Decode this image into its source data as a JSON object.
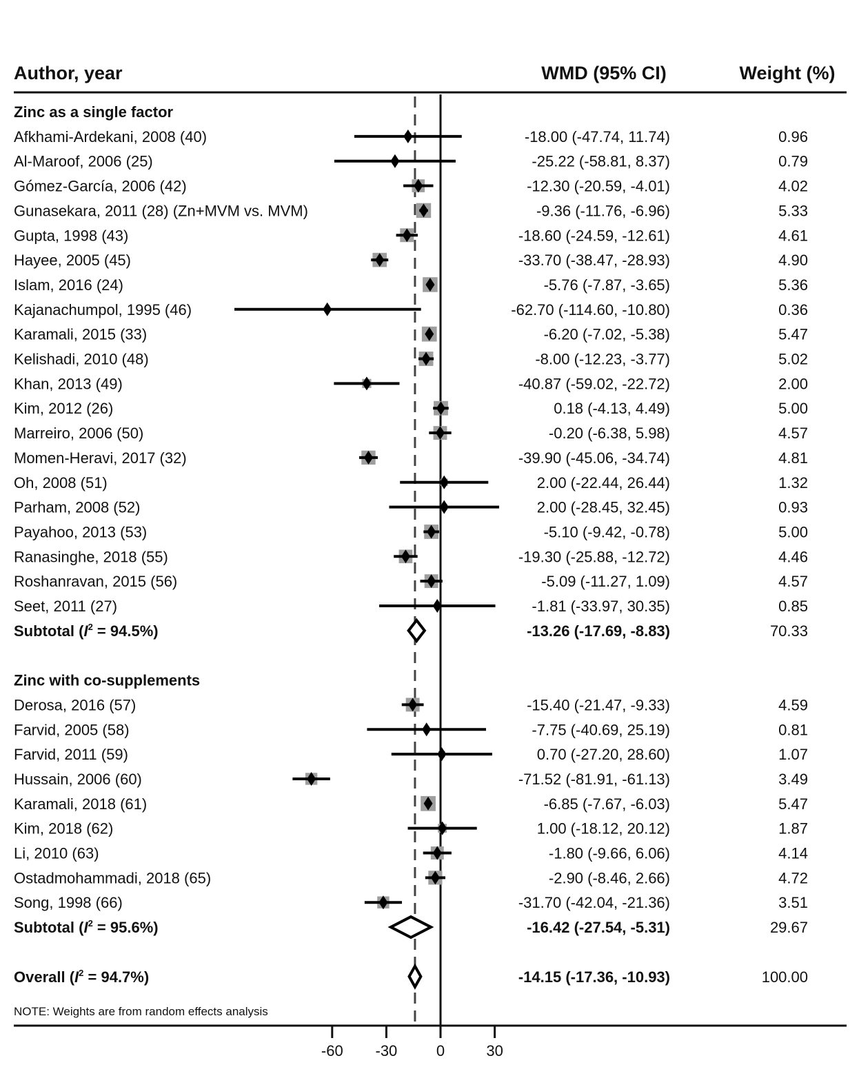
{
  "chart_data": {
    "type": "forest",
    "columns": {
      "study": "Author, year",
      "effect": "WMD (95% CI)",
      "weight": "Weight (%)"
    },
    "x_axis": {
      "ticks": [
        -60,
        -30,
        0,
        30
      ],
      "tick_labels": [
        "-60",
        "-30",
        "0",
        "30"
      ],
      "range": [
        -65,
        31
      ],
      "null_line": 0,
      "overall_reference_line": -14.15
    },
    "groups": [
      {
        "title": "Zinc as a single factor",
        "studies": [
          {
            "label": "Afkhami-Ardekani, 2008 (40)",
            "est": -18.0,
            "lo": -47.74,
            "hi": 11.74,
            "ci_text": "-18.00 (-47.74, 11.74)",
            "weight": 0.96,
            "weight_text": "0.96"
          },
          {
            "label": "Al-Maroof, 2006 (25)",
            "est": -25.22,
            "lo": -58.81,
            "hi": 8.37,
            "ci_text": "-25.22 (-58.81, 8.37)",
            "weight": 0.79,
            "weight_text": "0.79"
          },
          {
            "label": "Gómez-García, 2006 (42)",
            "est": -12.3,
            "lo": -20.59,
            "hi": -4.01,
            "ci_text": "-12.30 (-20.59, -4.01)",
            "weight": 4.02,
            "weight_text": "4.02"
          },
          {
            "label": "Gunasekara, 2011 (28) (Zn+MVM vs. MVM)",
            "est": -9.36,
            "lo": -11.76,
            "hi": -6.96,
            "ci_text": "-9.36 (-11.76, -6.96)",
            "weight": 5.33,
            "weight_text": "5.33"
          },
          {
            "label": "Gupta, 1998 (43)",
            "est": -18.6,
            "lo": -24.59,
            "hi": -12.61,
            "ci_text": "-18.60 (-24.59, -12.61)",
            "weight": 4.61,
            "weight_text": "4.61"
          },
          {
            "label": "Hayee, 2005 (45)",
            "est": -33.7,
            "lo": -38.47,
            "hi": -28.93,
            "ci_text": "-33.70 (-38.47, -28.93)",
            "weight": 4.9,
            "weight_text": "4.90"
          },
          {
            "label": "Islam, 2016 (24)",
            "est": -5.76,
            "lo": -7.87,
            "hi": -3.65,
            "ci_text": "-5.76 (-7.87, -3.65)",
            "weight": 5.36,
            "weight_text": "5.36"
          },
          {
            "label": "Kajanachumpol, 1995 (46)",
            "est": -62.7,
            "lo": -114.6,
            "hi": -10.8,
            "ci_text": "-62.70 (-114.60, -10.80)",
            "weight": 0.36,
            "weight_text": "0.36"
          },
          {
            "label": "Karamali, 2015 (33)",
            "est": -6.2,
            "lo": -7.02,
            "hi": -5.38,
            "ci_text": "-6.20 (-7.02, -5.38)",
            "weight": 5.47,
            "weight_text": "5.47"
          },
          {
            "label": "Kelishadi, 2010 (48)",
            "est": -8.0,
            "lo": -12.23,
            "hi": -3.77,
            "ci_text": "-8.00 (-12.23, -3.77)",
            "weight": 5.02,
            "weight_text": "5.02"
          },
          {
            "label": "Khan, 2013 (49)",
            "est": -40.87,
            "lo": -59.02,
            "hi": -22.72,
            "ci_text": "-40.87 (-59.02, -22.72)",
            "weight": 2.0,
            "weight_text": "2.00"
          },
          {
            "label": "Kim, 2012 (26)",
            "est": 0.18,
            "lo": -4.13,
            "hi": 4.49,
            "ci_text": "0.18 (-4.13, 4.49)",
            "weight": 5.0,
            "weight_text": "5.00"
          },
          {
            "label": "Marreiro, 2006 (50)",
            "est": -0.2,
            "lo": -6.38,
            "hi": 5.98,
            "ci_text": "-0.20 (-6.38, 5.98)",
            "weight": 4.57,
            "weight_text": "4.57"
          },
          {
            "label": "Momen-Heravi, 2017 (32)",
            "est": -39.9,
            "lo": -45.06,
            "hi": -34.74,
            "ci_text": "-39.90 (-45.06, -34.74)",
            "weight": 4.81,
            "weight_text": "4.81"
          },
          {
            "label": "Oh, 2008 (51)",
            "est": 2.0,
            "lo": -22.44,
            "hi": 26.44,
            "ci_text": "2.00 (-22.44, 26.44)",
            "weight": 1.32,
            "weight_text": "1.32"
          },
          {
            "label": "Parham, 2008 (52)",
            "est": 2.0,
            "lo": -28.45,
            "hi": 32.45,
            "ci_text": "2.00 (-28.45, 32.45)",
            "weight": 0.93,
            "weight_text": "0.93"
          },
          {
            "label": "Payahoo, 2013 (53)",
            "est": -5.1,
            "lo": -9.42,
            "hi": -0.78,
            "ci_text": "-5.10 (-9.42, -0.78)",
            "weight": 5.0,
            "weight_text": "5.00"
          },
          {
            "label": "Ranasinghe, 2018 (55)",
            "est": -19.3,
            "lo": -25.88,
            "hi": -12.72,
            "ci_text": "-19.30 (-25.88, -12.72)",
            "weight": 4.46,
            "weight_text": "4.46"
          },
          {
            "label": "Roshanravan, 2015 (56)",
            "est": -5.09,
            "lo": -11.27,
            "hi": 1.09,
            "ci_text": "-5.09 (-11.27, 1.09)",
            "weight": 4.57,
            "weight_text": "4.57"
          },
          {
            "label": "Seet, 2011 (27)",
            "est": -1.81,
            "lo": -33.97,
            "hi": 30.35,
            "ci_text": "-1.81 (-33.97, 30.35)",
            "weight": 0.85,
            "weight_text": "0.85"
          }
        ],
        "subtotal": {
          "label_prefix": "Subtotal (",
          "label_i": "I",
          "label_sup": "2",
          "label_suffix": " = 94.5%)",
          "i2": 94.5,
          "est": -13.26,
          "lo": -17.69,
          "hi": -8.83,
          "ci_text": "-13.26 (-17.69, -8.83)",
          "weight": 70.33,
          "weight_text": "70.33"
        }
      },
      {
        "title": "Zinc with co-supplements",
        "studies": [
          {
            "label": "Derosa, 2016 (57)",
            "est": -15.4,
            "lo": -21.47,
            "hi": -9.33,
            "ci_text": "-15.40 (-21.47, -9.33)",
            "weight": 4.59,
            "weight_text": "4.59"
          },
          {
            "label": "Farvid, 2005 (58)",
            "est": -7.75,
            "lo": -40.69,
            "hi": 25.19,
            "ci_text": "-7.75 (-40.69, 25.19)",
            "weight": 0.81,
            "weight_text": "0.81"
          },
          {
            "label": "Farvid, 2011 (59)",
            "est": 0.7,
            "lo": -27.2,
            "hi": 28.6,
            "ci_text": "0.70 (-27.20, 28.60)",
            "weight": 1.07,
            "weight_text": "1.07"
          },
          {
            "label": "Hussain, 2006 (60)",
            "est": -71.52,
            "lo": -81.91,
            "hi": -61.13,
            "ci_text": "-71.52 (-81.91, -61.13)",
            "weight": 3.49,
            "weight_text": "3.49"
          },
          {
            "label": "Karamali, 2018 (61)",
            "est": -6.85,
            "lo": -7.67,
            "hi": -6.03,
            "ci_text": "-6.85 (-7.67, -6.03)",
            "weight": 5.47,
            "weight_text": "5.47"
          },
          {
            "label": "Kim, 2018 (62)",
            "est": 1.0,
            "lo": -18.12,
            "hi": 20.12,
            "ci_text": "1.00 (-18.12, 20.12)",
            "weight": 1.87,
            "weight_text": "1.87"
          },
          {
            "label": "Li, 2010 (63)",
            "est": -1.8,
            "lo": -9.66,
            "hi": 6.06,
            "ci_text": "-1.80 (-9.66, 6.06)",
            "weight": 4.14,
            "weight_text": "4.14"
          },
          {
            "label": "Ostadmohammadi, 2018 (65)",
            "est": -2.9,
            "lo": -8.46,
            "hi": 2.66,
            "ci_text": "-2.90 (-8.46, 2.66)",
            "weight": 4.72,
            "weight_text": "4.72"
          },
          {
            "label": "Song, 1998 (66)",
            "est": -31.7,
            "lo": -42.04,
            "hi": -21.36,
            "ci_text": "-31.70 (-42.04, -21.36)",
            "weight": 3.51,
            "weight_text": "3.51"
          }
        ],
        "subtotal": {
          "label_prefix": "Subtotal (",
          "label_i": "I",
          "label_sup": "2",
          "label_suffix": " = 95.6%)",
          "i2": 95.6,
          "est": -16.42,
          "lo": -27.54,
          "hi": -5.31,
          "ci_text": "-16.42 (-27.54, -5.31)",
          "weight": 29.67,
          "weight_text": "29.67"
        }
      }
    ],
    "overall": {
      "label_prefix": "Overall (",
      "label_i": "I",
      "label_sup": "2",
      "label_suffix": " = 94.7%)",
      "i2": 94.7,
      "est": -14.15,
      "lo": -17.36,
      "hi": -10.93,
      "ci_text": "-14.15 (-17.36, -10.93)",
      "weight": 100.0,
      "weight_text": "100.00"
    },
    "note": "NOTE: Weights are from random effects analysis"
  }
}
